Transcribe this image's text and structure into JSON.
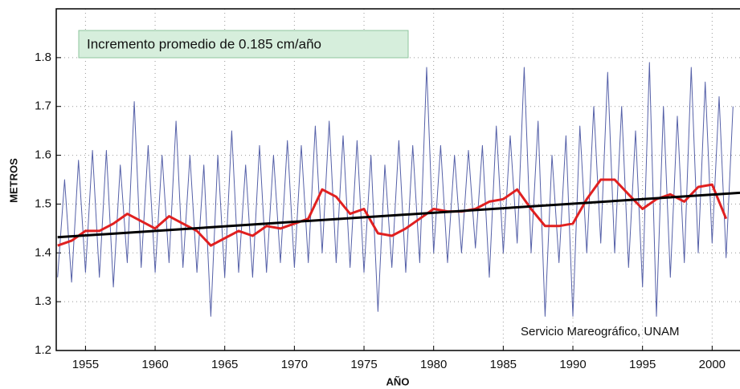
{
  "chart_data": {
    "type": "line",
    "annotation": "Incremento promedio de 0.185 cm/año",
    "source": "Servicio Mareográfico, UNAM",
    "xlabel": "AÑO",
    "ylabel": "METROS",
    "xlim": [
      1952.9,
      2002
    ],
    "ylim": [
      1.2,
      1.9
    ],
    "xticks": [
      1955,
      1960,
      1965,
      1970,
      1975,
      1980,
      1985,
      1990,
      1995,
      2000
    ],
    "yticks": [
      1.2,
      1.3,
      1.4,
      1.5,
      1.6,
      1.7,
      1.8
    ],
    "grid": true,
    "series": [
      {
        "color": "#5560a8",
        "width": 1,
        "x": [
          1953,
          1953.5,
          1954,
          1954.5,
          1955,
          1955.5,
          1956,
          1956.5,
          1957,
          1957.5,
          1958,
          1958.5,
          1959,
          1959.5,
          1960,
          1960.5,
          1961,
          1961.5,
          1962,
          1962.5,
          1963,
          1963.5,
          1964,
          1964.5,
          1965,
          1965.5,
          1966,
          1966.5,
          1967,
          1967.5,
          1968,
          1968.5,
          1969,
          1969.5,
          1970,
          1970.5,
          1971,
          1971.5,
          1972,
          1972.5,
          1973,
          1973.5,
          1974,
          1974.5,
          1975,
          1975.5,
          1976,
          1976.5,
          1977,
          1977.5,
          1978,
          1978.5,
          1979,
          1979.5,
          1980,
          1980.5,
          1981,
          1981.5,
          1982,
          1982.5,
          1983,
          1983.5,
          1984,
          1984.5,
          1985,
          1985.5,
          1986,
          1986.5,
          1987,
          1987.5,
          1988,
          1988.5,
          1989,
          1989.5,
          1990,
          1990.5,
          1991,
          1991.5,
          1992,
          1992.5,
          1993,
          1993.5,
          1994,
          1994.5,
          1995,
          1995.5,
          1996,
          1996.5,
          1997,
          1997.5,
          1998,
          1998.5,
          1999,
          1999.5,
          2000,
          2000.5,
          2001,
          2001.5
        ],
        "values": [
          1.35,
          1.55,
          1.34,
          1.59,
          1.36,
          1.61,
          1.35,
          1.61,
          1.33,
          1.58,
          1.38,
          1.71,
          1.37,
          1.62,
          1.36,
          1.6,
          1.38,
          1.67,
          1.37,
          1.6,
          1.36,
          1.58,
          1.27,
          1.6,
          1.35,
          1.65,
          1.36,
          1.58,
          1.35,
          1.62,
          1.36,
          1.6,
          1.38,
          1.63,
          1.37,
          1.62,
          1.38,
          1.66,
          1.4,
          1.67,
          1.38,
          1.64,
          1.37,
          1.63,
          1.36,
          1.6,
          1.28,
          1.58,
          1.37,
          1.63,
          1.36,
          1.62,
          1.38,
          1.78,
          1.4,
          1.62,
          1.38,
          1.6,
          1.4,
          1.61,
          1.41,
          1.62,
          1.35,
          1.66,
          1.4,
          1.64,
          1.42,
          1.78,
          1.4,
          1.67,
          1.27,
          1.6,
          1.38,
          1.64,
          1.27,
          1.66,
          1.4,
          1.7,
          1.42,
          1.77,
          1.4,
          1.7,
          1.37,
          1.65,
          1.33,
          1.79,
          1.27,
          1.7,
          1.35,
          1.68,
          1.38,
          1.78,
          1.4,
          1.75,
          1.42,
          1.72,
          1.39,
          1.7
        ]
      },
      {
        "color": "#e02020",
        "width": 3,
        "x": [
          1953,
          1954,
          1955,
          1956,
          1957,
          1958,
          1959,
          1960,
          1961,
          1962,
          1963,
          1964,
          1965,
          1966,
          1967,
          1968,
          1969,
          1970,
          1971,
          1972,
          1973,
          1974,
          1975,
          1976,
          1977,
          1978,
          1979,
          1980,
          1981,
          1982,
          1983,
          1984,
          1985,
          1986,
          1987,
          1988,
          1989,
          1990,
          1991,
          1992,
          1993,
          1994,
          1995,
          1996,
          1997,
          1998,
          1999,
          2000,
          2001
        ],
        "values": [
          1.415,
          1.425,
          1.445,
          1.445,
          1.46,
          1.48,
          1.465,
          1.45,
          1.475,
          1.46,
          1.445,
          1.415,
          1.43,
          1.445,
          1.435,
          1.455,
          1.45,
          1.46,
          1.47,
          1.53,
          1.515,
          1.48,
          1.49,
          1.44,
          1.435,
          1.45,
          1.47,
          1.49,
          1.485,
          1.485,
          1.49,
          1.505,
          1.51,
          1.53,
          1.49,
          1.455,
          1.455,
          1.46,
          1.51,
          1.55,
          1.55,
          1.52,
          1.49,
          1.51,
          1.52,
          1.505,
          1.535,
          1.54,
          1.47
        ]
      },
      {
        "color": "#000000",
        "width": 3,
        "x": [
          1953,
          2002
        ],
        "values": [
          1.432,
          1.523
        ]
      }
    ]
  }
}
